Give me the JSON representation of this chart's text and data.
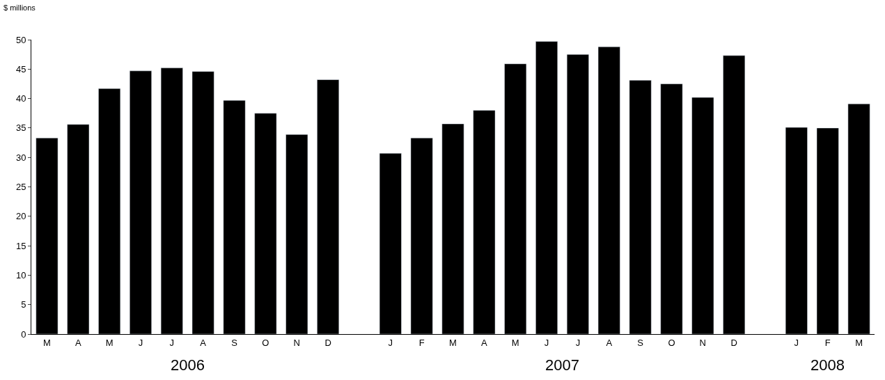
{
  "chart_data": {
    "type": "bar",
    "ylabel": "$ millions",
    "categories": [
      "M",
      "A",
      "M",
      "J",
      "J",
      "A",
      "S",
      "O",
      "N",
      "D",
      null,
      "J",
      "F",
      "M",
      "A",
      "M",
      "J",
      "J",
      "A",
      "S",
      "O",
      "N",
      "D",
      null,
      "J",
      "F",
      "M"
    ],
    "values": [
      33.3,
      35.6,
      41.7,
      44.7,
      45.2,
      44.6,
      39.7,
      37.5,
      33.9,
      43.2,
      null,
      30.7,
      33.3,
      35.7,
      38.0,
      45.9,
      49.7,
      47.5,
      48.8,
      43.1,
      42.5,
      40.2,
      47.3,
      null,
      35.1,
      35.0,
      39.1
    ],
    "color": "#000000",
    "ylim": [
      0,
      50
    ],
    "yticks": [
      0,
      5,
      10,
      15,
      20,
      25,
      30,
      35,
      40,
      45,
      50
    ],
    "legend": false,
    "annotations": [
      "2006",
      "2007",
      "2008"
    ]
  }
}
